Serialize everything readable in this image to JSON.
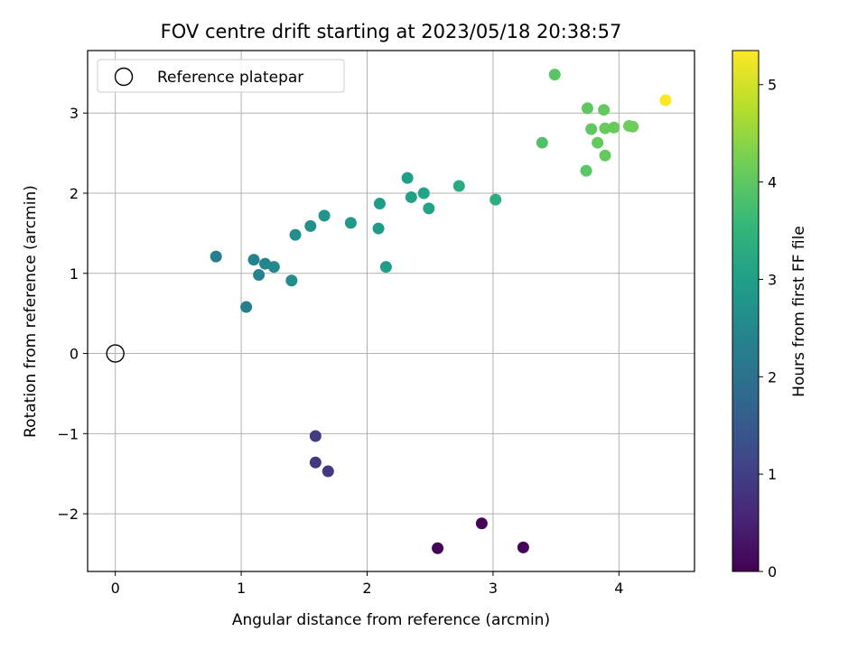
{
  "chart_data": {
    "type": "scatter",
    "title": "FOV centre drift starting at 2023/05/18 20:38:57",
    "xlabel": "Angular distance from reference (arcmin)",
    "ylabel": "Rotation from reference (arcmin)",
    "xlim": [
      -0.22,
      4.6
    ],
    "ylim": [
      -2.72,
      3.78
    ],
    "xticks": [
      0,
      1,
      2,
      3,
      4
    ],
    "xtick_labels": [
      "0",
      "1",
      "2",
      "3",
      "4"
    ],
    "yticks": [
      -2,
      -1,
      0,
      1,
      2,
      3
    ],
    "ytick_labels": [
      "−2",
      "−1",
      "0",
      "1",
      "2",
      "3"
    ],
    "grid": true,
    "legend": {
      "position": "top-left",
      "entries": [
        "Reference platepar"
      ]
    },
    "reference_point": {
      "x": 0,
      "y": 0
    },
    "colorbar": {
      "label": "Hours from first FF file",
      "range": [
        0,
        5.35
      ],
      "ticks": [
        0,
        1,
        2,
        3,
        4,
        5
      ],
      "tick_labels": [
        "0",
        "1",
        "2",
        "3",
        "4",
        "5"
      ],
      "colormap": "viridis"
    },
    "points": [
      {
        "x": 2.56,
        "y": -2.43,
        "c": 0.05
      },
      {
        "x": 2.91,
        "y": -2.12,
        "c": 0.05
      },
      {
        "x": 3.24,
        "y": -2.42,
        "c": 0.05
      },
      {
        "x": 1.59,
        "y": -1.03,
        "c": 0.95
      },
      {
        "x": 1.59,
        "y": -1.36,
        "c": 0.9
      },
      {
        "x": 1.69,
        "y": -1.47,
        "c": 0.85
      },
      {
        "x": 0.8,
        "y": 1.21,
        "c": 2.3
      },
      {
        "x": 1.04,
        "y": 0.58,
        "c": 2.3
      },
      {
        "x": 1.1,
        "y": 1.17,
        "c": 2.4
      },
      {
        "x": 1.14,
        "y": 0.98,
        "c": 2.4
      },
      {
        "x": 1.19,
        "y": 1.12,
        "c": 2.45
      },
      {
        "x": 1.26,
        "y": 1.08,
        "c": 2.5
      },
      {
        "x": 1.4,
        "y": 0.91,
        "c": 2.6
      },
      {
        "x": 1.43,
        "y": 1.48,
        "c": 2.6
      },
      {
        "x": 1.55,
        "y": 1.59,
        "c": 2.7
      },
      {
        "x": 1.66,
        "y": 1.72,
        "c": 2.75
      },
      {
        "x": 1.87,
        "y": 1.63,
        "c": 2.85
      },
      {
        "x": 2.09,
        "y": 1.56,
        "c": 2.9
      },
      {
        "x": 2.1,
        "y": 1.87,
        "c": 2.95
      },
      {
        "x": 2.15,
        "y": 1.08,
        "c": 3.0
      },
      {
        "x": 2.32,
        "y": 2.19,
        "c": 3.0
      },
      {
        "x": 2.35,
        "y": 1.95,
        "c": 3.05
      },
      {
        "x": 2.45,
        "y": 2.0,
        "c": 3.1
      },
      {
        "x": 2.49,
        "y": 1.81,
        "c": 3.1
      },
      {
        "x": 2.73,
        "y": 2.09,
        "c": 3.25
      },
      {
        "x": 3.02,
        "y": 1.92,
        "c": 3.35
      },
      {
        "x": 3.39,
        "y": 2.63,
        "c": 3.85
      },
      {
        "x": 3.49,
        "y": 3.48,
        "c": 3.95
      },
      {
        "x": 3.74,
        "y": 2.28,
        "c": 3.95
      },
      {
        "x": 3.75,
        "y": 3.06,
        "c": 4.0
      },
      {
        "x": 3.78,
        "y": 2.8,
        "c": 4.0
      },
      {
        "x": 3.83,
        "y": 2.63,
        "c": 4.05
      },
      {
        "x": 3.88,
        "y": 3.04,
        "c": 4.05
      },
      {
        "x": 3.89,
        "y": 2.47,
        "c": 4.05
      },
      {
        "x": 3.89,
        "y": 2.81,
        "c": 4.1
      },
      {
        "x": 3.96,
        "y": 2.82,
        "c": 4.1
      },
      {
        "x": 4.08,
        "y": 2.84,
        "c": 4.15
      },
      {
        "x": 4.11,
        "y": 2.83,
        "c": 4.15
      },
      {
        "x": 4.37,
        "y": 3.16,
        "c": 5.35
      }
    ]
  }
}
